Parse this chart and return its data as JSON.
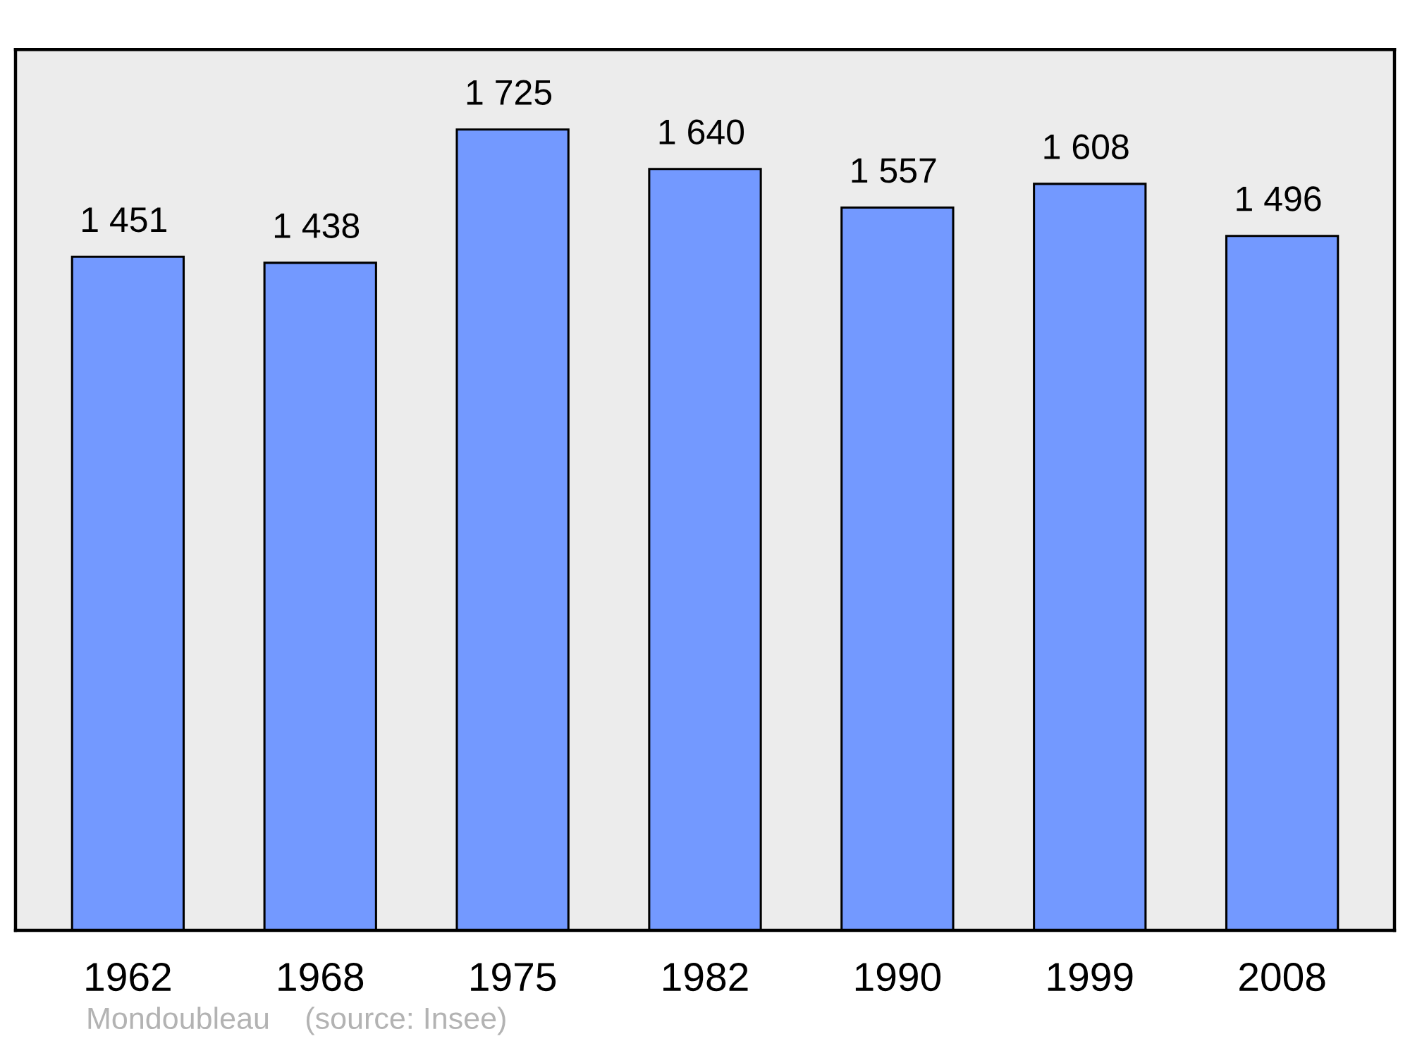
{
  "chart_data": {
    "type": "bar",
    "categories": [
      "1962",
      "1968",
      "1975",
      "1982",
      "1990",
      "1999",
      "2008"
    ],
    "values": [
      1451,
      1438,
      1725,
      1640,
      1557,
      1608,
      1496
    ],
    "value_labels": [
      "1 451",
      "1 438",
      "1 725",
      "1 640",
      "1 557",
      "1 608",
      "1 496"
    ],
    "color": "#7399ff",
    "tick_labels": "x",
    "annotations": [
      "Mondoubleau",
      "(source: Insee)"
    ]
  }
}
